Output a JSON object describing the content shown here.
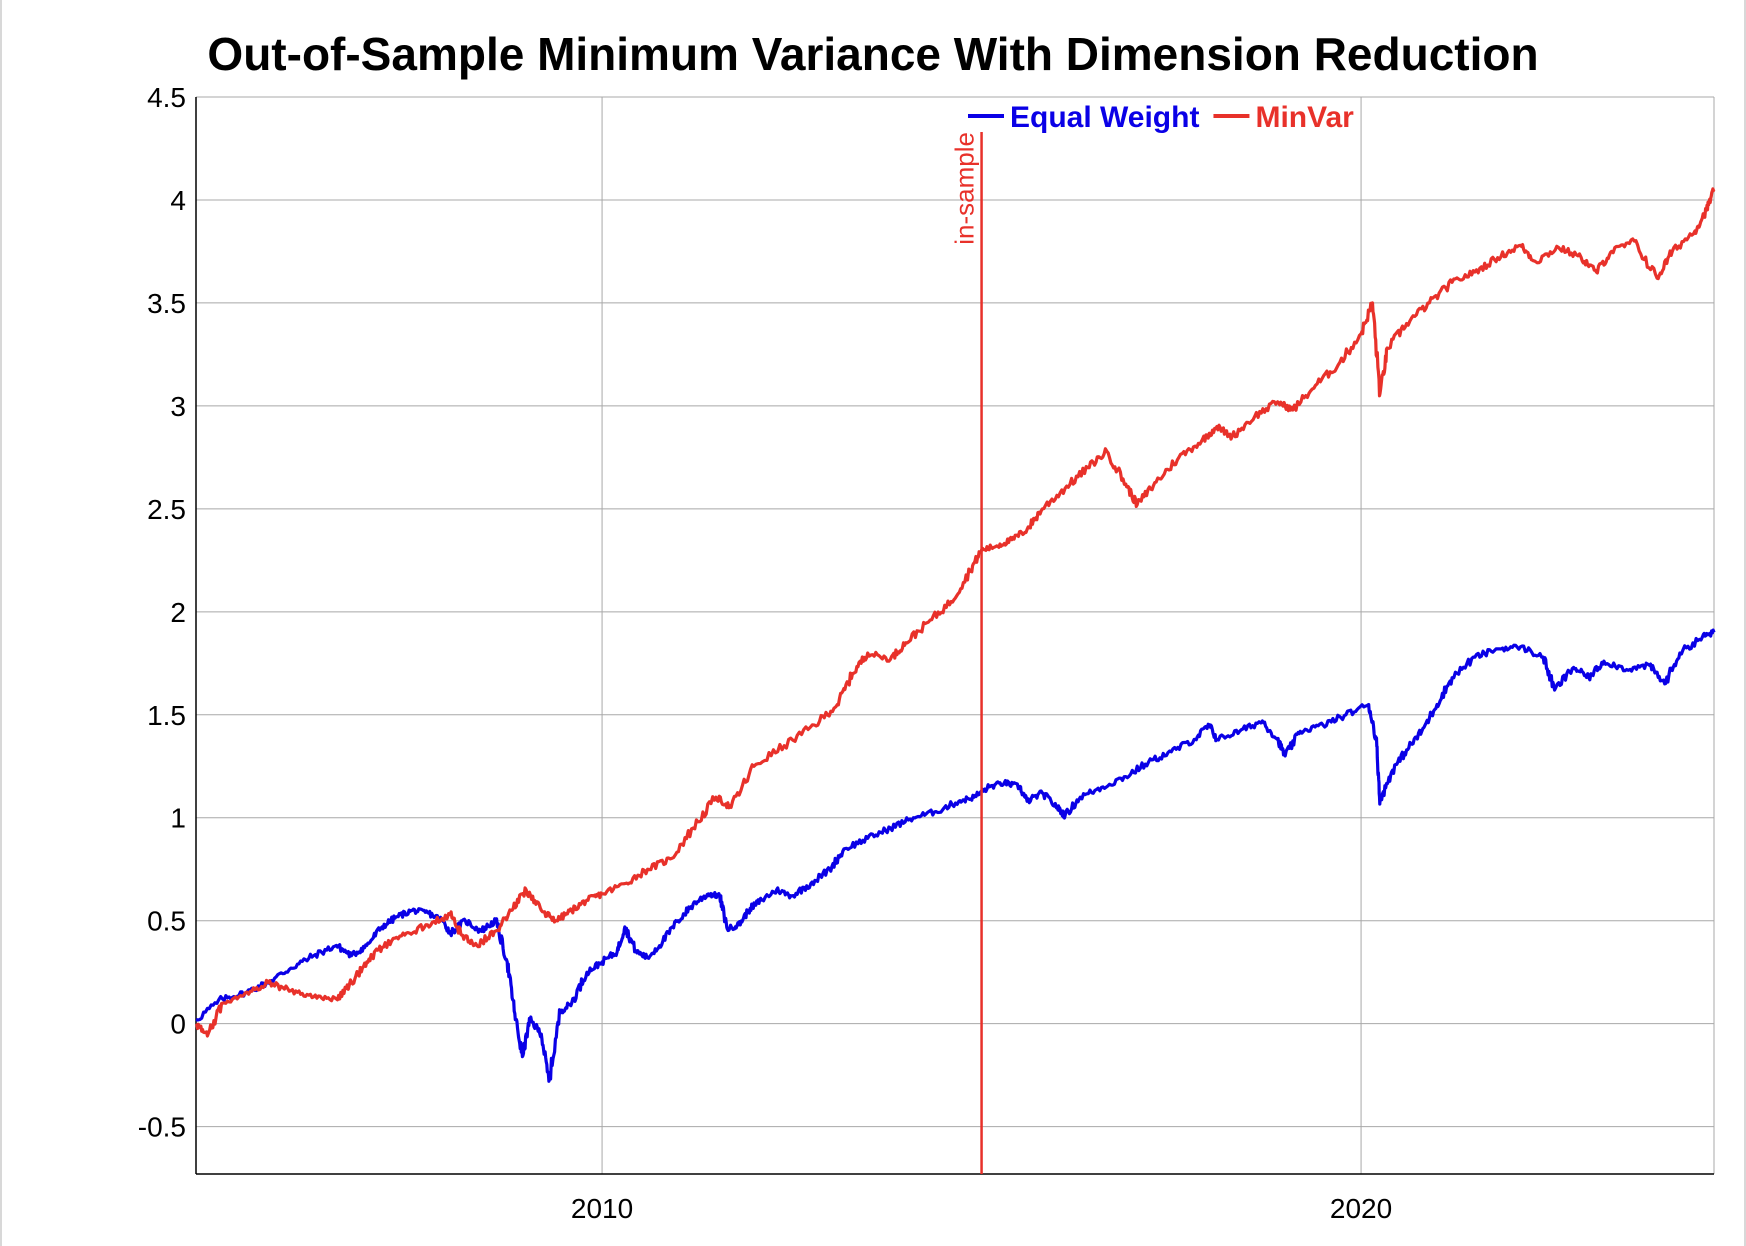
{
  "chart_data": {
    "type": "line",
    "title": "Out-of-Sample Minimum Variance With Dimension Reduction",
    "xlabel": "",
    "ylabel": "",
    "xlim": [
      2004.65,
      2024.65
    ],
    "ylim": [
      -0.73,
      4.5
    ],
    "x_ticks": [
      2010,
      2020
    ],
    "y_ticks": [
      -0.5,
      0,
      0.5,
      1,
      1.5,
      2,
      2.5,
      3,
      3.5,
      4,
      4.5
    ],
    "y_tick_labels": [
      "-0.5",
      "0",
      "0.5",
      "1",
      "1.5",
      "2",
      "2.5",
      "3",
      "3.5",
      "4",
      "4.5"
    ],
    "grid": true,
    "legend_position": "top-center",
    "vline": {
      "x": 2015.0,
      "label": "in-sample",
      "color": "#e8312a"
    },
    "series": [
      {
        "name": "Equal Weight",
        "color": "#0a00e6",
        "points": [
          [
            2004.65,
            0.02
          ],
          [
            2005.0,
            0.12
          ],
          [
            2005.3,
            0.15
          ],
          [
            2005.6,
            0.2
          ],
          [
            2005.9,
            0.27
          ],
          [
            2006.2,
            0.33
          ],
          [
            2006.5,
            0.38
          ],
          [
            2006.7,
            0.33
          ],
          [
            2006.9,
            0.38
          ],
          [
            2007.1,
            0.47
          ],
          [
            2007.3,
            0.52
          ],
          [
            2007.5,
            0.55
          ],
          [
            2007.7,
            0.54
          ],
          [
            2007.9,
            0.5
          ],
          [
            2008.0,
            0.44
          ],
          [
            2008.2,
            0.5
          ],
          [
            2008.4,
            0.45
          ],
          [
            2008.6,
            0.5
          ],
          [
            2008.75,
            0.3
          ],
          [
            2008.85,
            0.05
          ],
          [
            2008.95,
            -0.16
          ],
          [
            2009.05,
            0.02
          ],
          [
            2009.2,
            -0.05
          ],
          [
            2009.3,
            -0.28
          ],
          [
            2009.45,
            0.06
          ],
          [
            2009.6,
            0.1
          ],
          [
            2009.8,
            0.25
          ],
          [
            2010.0,
            0.3
          ],
          [
            2010.2,
            0.35
          ],
          [
            2010.3,
            0.47
          ],
          [
            2010.45,
            0.35
          ],
          [
            2010.6,
            0.32
          ],
          [
            2010.8,
            0.4
          ],
          [
            2011.0,
            0.5
          ],
          [
            2011.2,
            0.58
          ],
          [
            2011.4,
            0.63
          ],
          [
            2011.55,
            0.62
          ],
          [
            2011.65,
            0.46
          ],
          [
            2011.8,
            0.48
          ],
          [
            2011.95,
            0.56
          ],
          [
            2012.1,
            0.6
          ],
          [
            2012.3,
            0.65
          ],
          [
            2012.5,
            0.62
          ],
          [
            2012.75,
            0.68
          ],
          [
            2013.0,
            0.75
          ],
          [
            2013.2,
            0.85
          ],
          [
            2013.5,
            0.9
          ],
          [
            2013.8,
            0.95
          ],
          [
            2014.1,
            1.0
          ],
          [
            2014.4,
            1.03
          ],
          [
            2014.7,
            1.08
          ],
          [
            2014.9,
            1.1
          ],
          [
            2015.1,
            1.15
          ],
          [
            2015.3,
            1.17
          ],
          [
            2015.5,
            1.15
          ],
          [
            2015.6,
            1.08
          ],
          [
            2015.8,
            1.12
          ],
          [
            2016.0,
            1.05
          ],
          [
            2016.1,
            1.01
          ],
          [
            2016.3,
            1.1
          ],
          [
            2016.6,
            1.15
          ],
          [
            2016.9,
            1.2
          ],
          [
            2017.2,
            1.27
          ],
          [
            2017.5,
            1.32
          ],
          [
            2017.8,
            1.38
          ],
          [
            2018.0,
            1.45
          ],
          [
            2018.1,
            1.38
          ],
          [
            2018.4,
            1.42
          ],
          [
            2018.7,
            1.47
          ],
          [
            2018.9,
            1.38
          ],
          [
            2019.0,
            1.3
          ],
          [
            2019.2,
            1.42
          ],
          [
            2019.5,
            1.45
          ],
          [
            2019.8,
            1.5
          ],
          [
            2020.1,
            1.55
          ],
          [
            2020.2,
            1.38
          ],
          [
            2020.25,
            1.08
          ],
          [
            2020.4,
            1.22
          ],
          [
            2020.6,
            1.33
          ],
          [
            2020.8,
            1.42
          ],
          [
            2021.0,
            1.55
          ],
          [
            2021.2,
            1.68
          ],
          [
            2021.5,
            1.78
          ],
          [
            2021.8,
            1.82
          ],
          [
            2022.1,
            1.83
          ],
          [
            2022.4,
            1.78
          ],
          [
            2022.55,
            1.62
          ],
          [
            2022.8,
            1.73
          ],
          [
            2023.0,
            1.68
          ],
          [
            2023.2,
            1.76
          ],
          [
            2023.5,
            1.72
          ],
          [
            2023.8,
            1.74
          ],
          [
            2024.0,
            1.65
          ],
          [
            2024.2,
            1.8
          ],
          [
            2024.5,
            1.88
          ],
          [
            2024.65,
            1.9
          ]
        ]
      },
      {
        "name": "MinVar",
        "color": "#e8312a",
        "points": [
          [
            2004.65,
            0.0
          ],
          [
            2004.8,
            -0.06
          ],
          [
            2005.0,
            0.1
          ],
          [
            2005.3,
            0.15
          ],
          [
            2005.6,
            0.2
          ],
          [
            2005.9,
            0.16
          ],
          [
            2006.2,
            0.13
          ],
          [
            2006.5,
            0.12
          ],
          [
            2006.7,
            0.2
          ],
          [
            2006.9,
            0.3
          ],
          [
            2007.1,
            0.37
          ],
          [
            2007.4,
            0.43
          ],
          [
            2007.7,
            0.48
          ],
          [
            2008.0,
            0.53
          ],
          [
            2008.15,
            0.43
          ],
          [
            2008.35,
            0.38
          ],
          [
            2008.6,
            0.45
          ],
          [
            2008.8,
            0.55
          ],
          [
            2009.0,
            0.65
          ],
          [
            2009.2,
            0.55
          ],
          [
            2009.4,
            0.5
          ],
          [
            2009.6,
            0.55
          ],
          [
            2009.8,
            0.6
          ],
          [
            2010.0,
            0.63
          ],
          [
            2010.3,
            0.68
          ],
          [
            2010.6,
            0.75
          ],
          [
            2010.9,
            0.8
          ],
          [
            2011.2,
            0.95
          ],
          [
            2011.5,
            1.1
          ],
          [
            2011.7,
            1.05
          ],
          [
            2012.0,
            1.25
          ],
          [
            2012.4,
            1.35
          ],
          [
            2012.8,
            1.45
          ],
          [
            2013.1,
            1.55
          ],
          [
            2013.3,
            1.7
          ],
          [
            2013.5,
            1.8
          ],
          [
            2013.8,
            1.77
          ],
          [
            2014.0,
            1.85
          ],
          [
            2014.3,
            1.95
          ],
          [
            2014.6,
            2.05
          ],
          [
            2014.85,
            2.2
          ],
          [
            2015.0,
            2.3
          ],
          [
            2015.2,
            2.32
          ],
          [
            2015.4,
            2.35
          ],
          [
            2015.6,
            2.4
          ],
          [
            2015.8,
            2.5
          ],
          [
            2016.1,
            2.6
          ],
          [
            2016.4,
            2.7
          ],
          [
            2016.65,
            2.78
          ],
          [
            2016.9,
            2.62
          ],
          [
            2017.05,
            2.52
          ],
          [
            2017.3,
            2.63
          ],
          [
            2017.6,
            2.75
          ],
          [
            2017.9,
            2.83
          ],
          [
            2018.1,
            2.9
          ],
          [
            2018.3,
            2.85
          ],
          [
            2018.6,
            2.95
          ],
          [
            2018.9,
            3.02
          ],
          [
            2019.1,
            2.98
          ],
          [
            2019.4,
            3.1
          ],
          [
            2019.7,
            3.2
          ],
          [
            2020.0,
            3.35
          ],
          [
            2020.15,
            3.5
          ],
          [
            2020.25,
            3.06
          ],
          [
            2020.35,
            3.28
          ],
          [
            2020.6,
            3.4
          ],
          [
            2020.9,
            3.5
          ],
          [
            2021.2,
            3.6
          ],
          [
            2021.5,
            3.65
          ],
          [
            2021.8,
            3.72
          ],
          [
            2022.1,
            3.78
          ],
          [
            2022.3,
            3.7
          ],
          [
            2022.6,
            3.77
          ],
          [
            2022.9,
            3.72
          ],
          [
            2023.1,
            3.65
          ],
          [
            2023.3,
            3.75
          ],
          [
            2023.6,
            3.8
          ],
          [
            2023.9,
            3.62
          ],
          [
            2024.1,
            3.75
          ],
          [
            2024.4,
            3.85
          ],
          [
            2024.55,
            3.95
          ],
          [
            2024.65,
            4.05
          ]
        ]
      }
    ]
  }
}
